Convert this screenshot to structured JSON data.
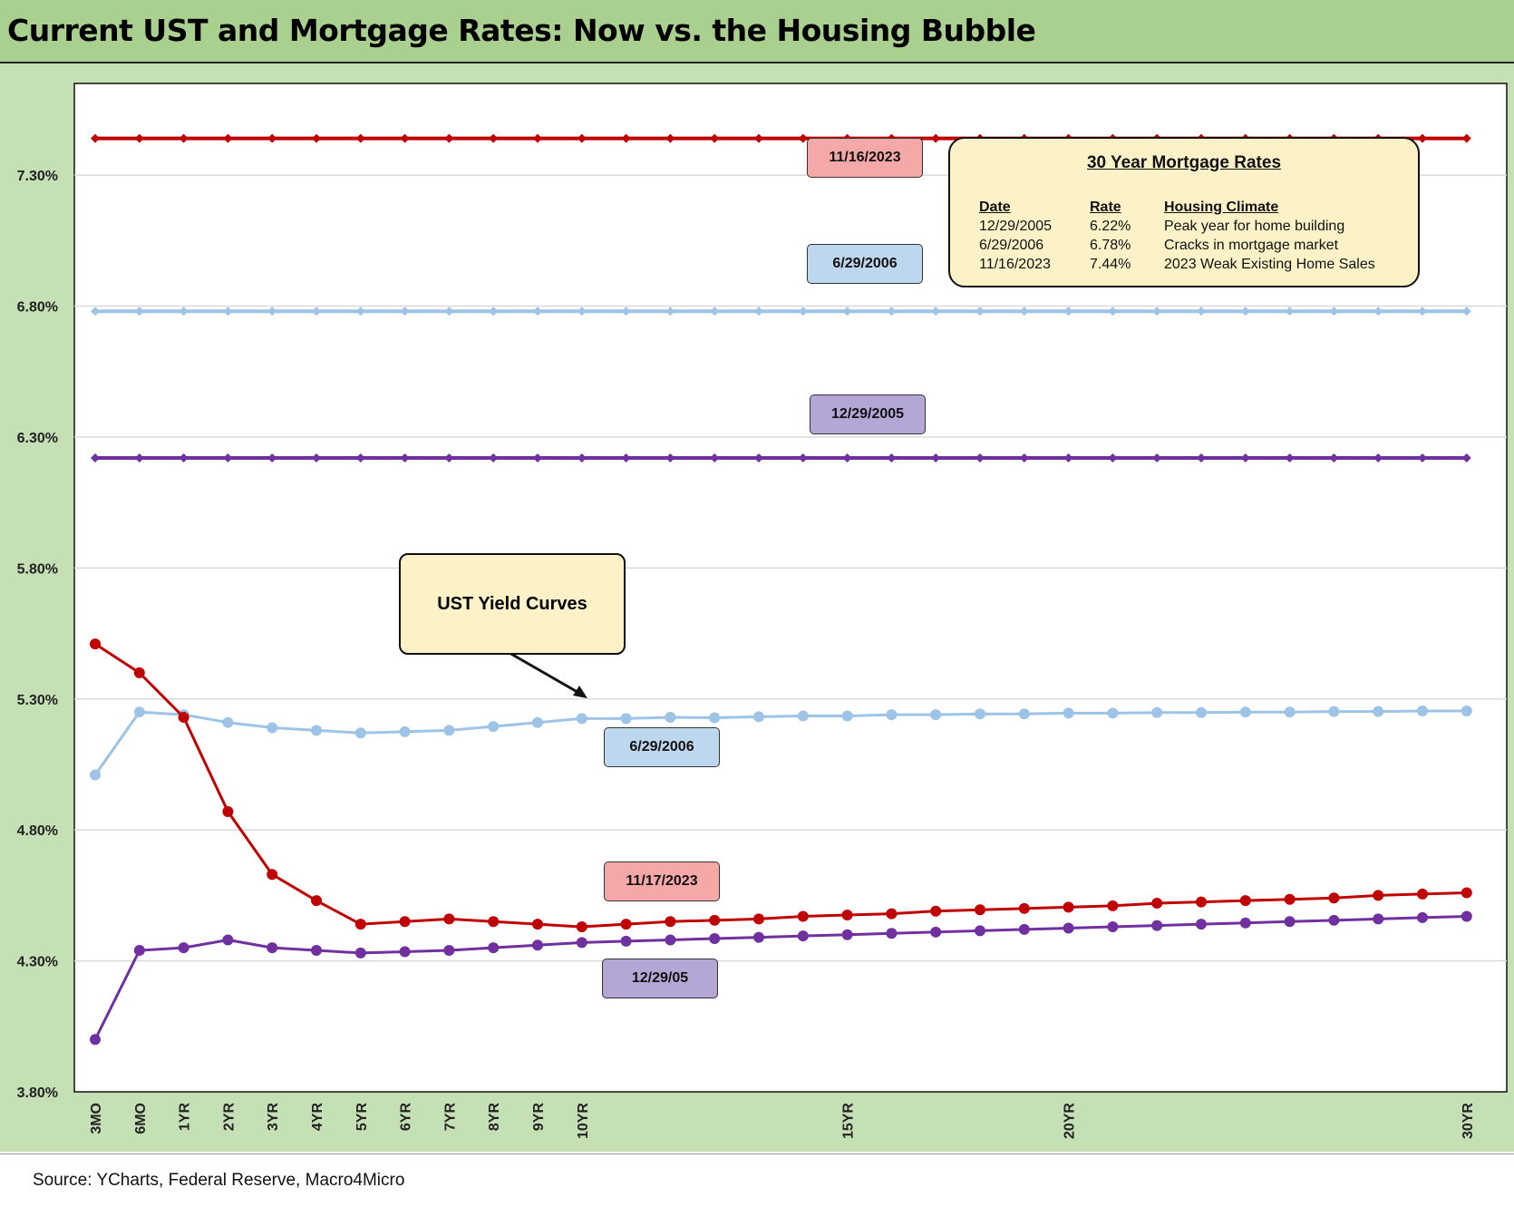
{
  "title": "Current UST and Mortgage Rates: Now vs. the Housing Bubble",
  "source": "Source: YCharts, Federal Reserve, Macro4Micro",
  "colors": {
    "red": "#c00000",
    "light_blue": "#9dc3e6",
    "purple": "#7030a0",
    "header_bg": "#a9d08e",
    "axis_bg": "#c5e0b4",
    "callout_bg": "#fdf2c7"
  },
  "chart_data": {
    "type": "line",
    "x_positions": [
      "3MO",
      "6MO",
      "1YR",
      "2YR",
      "3YR",
      "4YR",
      "5YR",
      "6YR",
      "7YR",
      "8YR",
      "9YR",
      "10YR",
      "",
      "",
      "",
      "",
      "",
      "15YR",
      "",
      "",
      "",
      "",
      "20YR",
      "",
      "",
      "",
      "",
      "",
      "",
      "",
      "",
      "30YR"
    ],
    "x_tick_labels": [
      "3MO",
      "6MO",
      "1YR",
      "2YR",
      "3YR",
      "4YR",
      "5YR",
      "6YR",
      "7YR",
      "8YR",
      "9YR",
      "10YR",
      "15YR",
      "20YR",
      "30YR"
    ],
    "y_ticks": [
      "3.80%",
      "4.30%",
      "4.80%",
      "5.30%",
      "5.80%",
      "6.30%",
      "6.80%",
      "7.30%"
    ],
    "ylim": [
      3.8,
      7.65
    ],
    "grid": true,
    "series": [
      {
        "name": "11/16/2023",
        "color": "#c00000",
        "marker": "diamond",
        "values": [
          7.44,
          7.44,
          7.44,
          7.44,
          7.44,
          7.44,
          7.44,
          7.44,
          7.44,
          7.44,
          7.44,
          7.44,
          7.44,
          7.44,
          7.44,
          7.44,
          7.44,
          7.44,
          7.44,
          7.44,
          7.44,
          7.44,
          7.44,
          7.44,
          7.44,
          7.44,
          7.44,
          7.44,
          7.44,
          7.44,
          7.44,
          7.44
        ]
      },
      {
        "name": "6/29/2006",
        "color": "#9dc3e6",
        "marker": "diamond",
        "values": [
          6.78,
          6.78,
          6.78,
          6.78,
          6.78,
          6.78,
          6.78,
          6.78,
          6.78,
          6.78,
          6.78,
          6.78,
          6.78,
          6.78,
          6.78,
          6.78,
          6.78,
          6.78,
          6.78,
          6.78,
          6.78,
          6.78,
          6.78,
          6.78,
          6.78,
          6.78,
          6.78,
          6.78,
          6.78,
          6.78,
          6.78,
          6.78
        ]
      },
      {
        "name": "12/29/2005",
        "color": "#7030a0",
        "marker": "diamond",
        "values": [
          6.22,
          6.22,
          6.22,
          6.22,
          6.22,
          6.22,
          6.22,
          6.22,
          6.22,
          6.22,
          6.22,
          6.22,
          6.22,
          6.22,
          6.22,
          6.22,
          6.22,
          6.22,
          6.22,
          6.22,
          6.22,
          6.22,
          6.22,
          6.22,
          6.22,
          6.22,
          6.22,
          6.22,
          6.22,
          6.22,
          6.22,
          6.22
        ]
      },
      {
        "name": "6/29/2006",
        "color": "#9dc3e6",
        "marker": "circle",
        "values": [
          5.01,
          5.25,
          5.24,
          5.21,
          5.19,
          5.18,
          5.17,
          5.175,
          5.18,
          5.195,
          5.21,
          5.225,
          5.225,
          5.23,
          5.228,
          5.232,
          5.235,
          5.235,
          5.24,
          5.24,
          5.243,
          5.243,
          5.246,
          5.246,
          5.248,
          5.248,
          5.25,
          5.25,
          5.252,
          5.252,
          5.254,
          5.254
        ]
      },
      {
        "name": "11/17/2023",
        "color": "#c00000",
        "marker": "circle",
        "values": [
          5.51,
          5.4,
          5.23,
          4.87,
          4.63,
          4.53,
          4.44,
          4.45,
          4.46,
          4.45,
          4.44,
          4.43,
          4.44,
          4.45,
          4.455,
          4.46,
          4.47,
          4.475,
          4.48,
          4.49,
          4.495,
          4.5,
          4.505,
          4.51,
          4.52,
          4.525,
          4.53,
          4.535,
          4.54,
          4.55,
          4.555,
          4.56
        ]
      },
      {
        "name": "12/29/05",
        "color": "#7030a0",
        "marker": "circle",
        "values": [
          4.0,
          4.34,
          4.35,
          4.38,
          4.35,
          4.34,
          4.33,
          4.335,
          4.34,
          4.35,
          4.36,
          4.37,
          4.375,
          4.38,
          4.385,
          4.39,
          4.395,
          4.4,
          4.405,
          4.41,
          4.415,
          4.42,
          4.425,
          4.43,
          4.435,
          4.44,
          4.445,
          4.45,
          4.455,
          4.46,
          4.465,
          4.47
        ]
      }
    ],
    "labels": {
      "mort_2023": "11/16/2023",
      "mort_2006": "6/29/2006",
      "mort_2005": "12/29/2005",
      "ust_2006": "6/29/2006",
      "ust_2023": "11/17/2023",
      "ust_2005": "12/29/05",
      "ust_callout": "UST Yield Curves"
    },
    "table": {
      "title": "30 Year Mortgage Rates",
      "headers": [
        "Date",
        "Rate",
        "Housing Climate"
      ],
      "rows": [
        [
          "12/29/2005",
          "6.22%",
          "Peak year for home building"
        ],
        [
          "6/29/2006",
          "6.78%",
          "Cracks in mortgage market"
        ],
        [
          "11/16/2023",
          "7.44%",
          "2023 Weak Existing Home Sales"
        ]
      ]
    }
  }
}
